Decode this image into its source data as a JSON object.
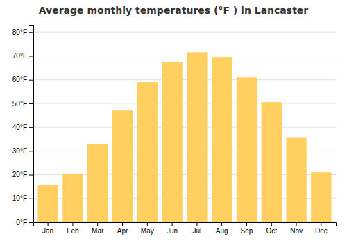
{
  "chart_data": {
    "type": "bar",
    "title": "Average monthly temperatures (°F ) in Lancaster",
    "categories": [
      "Jan",
      "Feb",
      "Mar",
      "Apr",
      "May",
      "Jun",
      "Jul",
      "Aug",
      "Sep",
      "Oct",
      "Nov",
      "Dec"
    ],
    "values": [
      15.5,
      20.5,
      33,
      47,
      59,
      67.5,
      71.5,
      69.5,
      61,
      50.5,
      35.5,
      21
    ],
    "color": "#FFD060",
    "ylim": [
      0,
      83
    ],
    "yticks": [
      {
        "value": 0,
        "label": "0°F"
      },
      {
        "value": 10,
        "label": "10°F"
      },
      {
        "value": 20,
        "label": "20°F"
      },
      {
        "value": 30,
        "label": "30°F"
      },
      {
        "value": 40,
        "label": "40°F"
      },
      {
        "value": 50,
        "label": "50°F"
      },
      {
        "value": 60,
        "label": "60°F"
      },
      {
        "value": 70,
        "label": "70°F"
      },
      {
        "value": 80,
        "label": "80°F"
      }
    ],
    "grid": true
  }
}
